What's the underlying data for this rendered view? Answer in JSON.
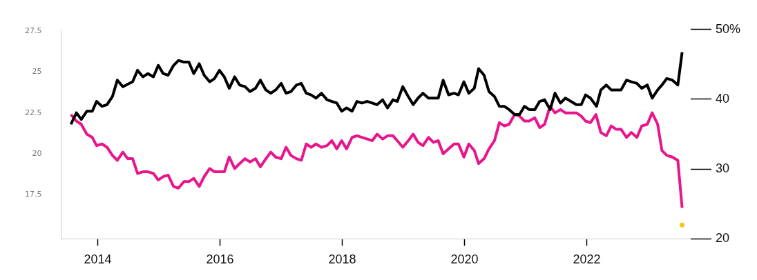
{
  "chart_data": {
    "type": "line",
    "xlim": [
      2013.4,
      2023.7
    ],
    "xticks": [
      2014,
      2016,
      2018,
      2020,
      2022
    ],
    "ylim": [
      14.8,
      27.6
    ],
    "yticks": [
      17.5,
      20,
      22.5,
      25,
      27.5
    ],
    "y2lim": [
      20,
      50
    ],
    "y2ticks": [
      {
        "value": 20,
        "label": "20"
      },
      {
        "value": 30,
        "label": "30"
      },
      {
        "value": 40,
        "label": "40"
      },
      {
        "value": 50,
        "label": "50%"
      }
    ],
    "series": [
      {
        "color": "#000000",
        "x": [
          2013.56,
          2013.65,
          2013.73,
          2013.82,
          2013.91,
          2013.98,
          2014.07,
          2014.15,
          2014.24,
          2014.32,
          2014.41,
          2014.57,
          2014.65,
          2014.74,
          2014.82,
          2014.91,
          2014.99,
          2015.07,
          2015.15,
          2015.24,
          2015.32,
          2015.41,
          2015.49,
          2015.57,
          2015.66,
          2015.74,
          2015.83,
          2015.91,
          2015.99,
          2016.07,
          2016.15,
          2016.24,
          2016.32,
          2016.41,
          2016.49,
          2016.58,
          2016.66,
          2016.75,
          2016.83,
          2016.91,
          2017.0,
          2017.08,
          2017.16,
          2017.25,
          2017.33,
          2017.41,
          2017.49,
          2017.57,
          2017.66,
          2017.75,
          2017.83,
          2017.91,
          2017.99,
          2018.07,
          2018.16,
          2018.24,
          2018.32,
          2018.41,
          2018.49,
          2018.57,
          2018.66,
          2018.74,
          2018.83,
          2018.9,
          2018.99,
          2019.08,
          2019.16,
          2019.24,
          2019.32,
          2019.41,
          2019.49,
          2019.57,
          2019.65,
          2019.74,
          2019.83,
          2019.9,
          2019.99,
          2020.07,
          2020.16,
          2020.23,
          2020.32,
          2020.4,
          2020.49,
          2020.57,
          2020.65,
          2020.73,
          2020.82,
          2020.9,
          2020.98,
          2021.06,
          2021.15,
          2021.23,
          2021.31,
          2021.4,
          2021.48,
          2021.57,
          2021.65,
          2021.74,
          2021.83,
          2021.91,
          2021.98,
          2022.06,
          2022.16,
          2022.23,
          2022.32,
          2022.4,
          2022.56,
          2022.65,
          2022.73,
          2022.82,
          2022.9,
          2022.99,
          2023.07,
          2023.16,
          2023.23,
          2023.31,
          2023.4,
          2023.49,
          2023.56
        ],
        "values": [
          21.8,
          22.5,
          22.1,
          22.6,
          22.6,
          23.2,
          22.9,
          23.0,
          23.5,
          24.5,
          24.1,
          24.4,
          25.1,
          24.7,
          24.9,
          24.7,
          25.4,
          24.9,
          24.8,
          25.4,
          25.7,
          25.6,
          25.6,
          24.9,
          25.5,
          24.8,
          24.4,
          24.6,
          25.1,
          24.7,
          24.0,
          24.7,
          24.2,
          24.1,
          23.8,
          24.0,
          24.5,
          23.9,
          23.7,
          23.9,
          24.3,
          23.7,
          23.8,
          24.2,
          24.3,
          23.7,
          23.6,
          23.4,
          23.7,
          23.3,
          23.2,
          23.1,
          22.6,
          22.8,
          22.6,
          23.2,
          23.1,
          23.2,
          23.1,
          23.0,
          23.3,
          22.8,
          23.3,
          23.2,
          24.1,
          23.5,
          23.0,
          23.4,
          23.7,
          23.4,
          23.4,
          23.4,
          24.5,
          23.6,
          23.7,
          23.6,
          24.4,
          23.7,
          24.0,
          25.2,
          24.8,
          23.8,
          23.5,
          22.9,
          22.9,
          22.7,
          22.4,
          22.4,
          22.9,
          22.7,
          22.7,
          23.2,
          23.3,
          22.7,
          23.7,
          23.1,
          23.4,
          23.2,
          23.0,
          23.0,
          23.6,
          23.4,
          22.9,
          23.9,
          24.2,
          23.9,
          23.9,
          24.5,
          24.4,
          24.3,
          24.0,
          24.2,
          23.4,
          23.9,
          24.2,
          24.6,
          24.5,
          24.2,
          26.2
        ]
      },
      {
        "color": "#e8158c",
        "x": [
          2013.56,
          2013.65,
          2013.73,
          2013.82,
          2013.91,
          2013.98,
          2014.07,
          2014.15,
          2014.24,
          2014.32,
          2014.41,
          2014.49,
          2014.57,
          2014.65,
          2014.74,
          2014.82,
          2014.91,
          2014.99,
          2015.07,
          2015.15,
          2015.24,
          2015.32,
          2015.41,
          2015.49,
          2015.57,
          2015.66,
          2015.74,
          2015.83,
          2015.91,
          2015.99,
          2016.07,
          2016.15,
          2016.24,
          2016.32,
          2016.41,
          2016.49,
          2016.58,
          2016.66,
          2016.75,
          2016.83,
          2016.91,
          2017.0,
          2017.08,
          2017.16,
          2017.25,
          2017.33,
          2017.41,
          2017.49,
          2017.57,
          2017.66,
          2017.75,
          2017.83,
          2017.91,
          2017.99,
          2018.07,
          2018.16,
          2018.24,
          2018.41,
          2018.49,
          2018.57,
          2018.66,
          2018.74,
          2018.83,
          2018.9,
          2018.99,
          2019.08,
          2019.16,
          2019.24,
          2019.32,
          2019.41,
          2019.49,
          2019.57,
          2019.65,
          2019.74,
          2019.83,
          2019.9,
          2019.99,
          2020.07,
          2020.16,
          2020.23,
          2020.32,
          2020.4,
          2020.49,
          2020.57,
          2020.65,
          2020.73,
          2020.82,
          2020.9,
          2020.98,
          2021.06,
          2021.15,
          2021.23,
          2021.31,
          2021.4,
          2021.48,
          2021.57,
          2021.65,
          2021.74,
          2021.83,
          2021.91,
          2021.98,
          2022.06,
          2022.15,
          2022.23,
          2022.32,
          2022.4,
          2022.48,
          2022.56,
          2022.65,
          2022.73,
          2022.82,
          2022.9,
          2022.99,
          2023.07,
          2023.16,
          2023.23,
          2023.31,
          2023.4,
          2023.49,
          2023.56
        ],
        "values": [
          22.4,
          22.0,
          21.8,
          21.2,
          21.0,
          20.5,
          20.6,
          20.4,
          19.9,
          19.6,
          20.1,
          19.7,
          19.7,
          18.8,
          18.9,
          18.9,
          18.8,
          18.4,
          18.6,
          18.7,
          18.0,
          17.9,
          18.3,
          18.3,
          18.5,
          18.0,
          18.6,
          19.1,
          18.9,
          18.9,
          18.9,
          19.8,
          19.1,
          19.4,
          19.7,
          19.5,
          19.7,
          19.2,
          19.7,
          20.1,
          19.8,
          19.7,
          20.4,
          19.9,
          19.7,
          19.6,
          20.6,
          20.4,
          20.6,
          20.4,
          20.5,
          20.8,
          20.3,
          20.8,
          20.3,
          21.0,
          21.1,
          20.9,
          20.8,
          21.2,
          20.9,
          21.1,
          21.1,
          20.8,
          20.4,
          20.8,
          21.2,
          20.7,
          20.5,
          21.0,
          20.7,
          20.8,
          20.0,
          20.3,
          20.6,
          20.6,
          19.8,
          20.6,
          20.2,
          19.4,
          19.7,
          20.3,
          20.8,
          21.9,
          21.7,
          21.8,
          22.4,
          22.3,
          22.0,
          22.0,
          22.2,
          21.6,
          21.8,
          22.9,
          22.5,
          22.7,
          22.5,
          22.5,
          22.5,
          22.3,
          22.0,
          21.9,
          22.4,
          21.3,
          21.1,
          21.7,
          21.5,
          21.5,
          21.0,
          21.3,
          21.0,
          21.7,
          21.8,
          22.5,
          21.8,
          20.2,
          19.9,
          19.8,
          19.6,
          16.7
        ]
      },
      {
        "type": "scatter",
        "axis": "y2",
        "color": "#f5c518",
        "x": [
          2023.56
        ],
        "values": [
          22.0
        ]
      }
    ]
  }
}
